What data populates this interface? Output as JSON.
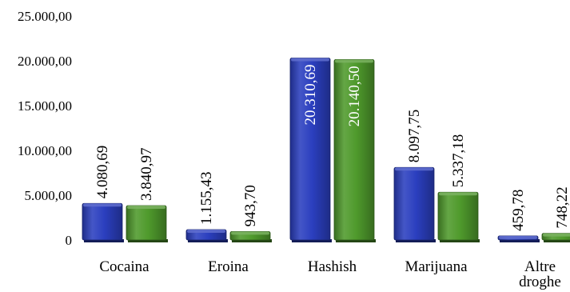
{
  "chart_data": {
    "type": "bar",
    "categories": [
      "Cocaina",
      "Eroina",
      "Hashish",
      "Marijuana",
      "Altre droghe"
    ],
    "series": [
      {
        "color": "#2B3FBF",
        "values": [
          4080.69,
          1155.43,
          20310.69,
          8097.75,
          459.78
        ],
        "labels": [
          "4.080,69",
          "1.155,43",
          "20.310,69",
          "8.097,75",
          "459,78"
        ]
      },
      {
        "color": "#4F9A2C",
        "values": [
          3840.97,
          943.7,
          20140.5,
          5337.18,
          748.22
        ],
        "labels": [
          "3.840,97",
          "943,70",
          "20.140,50",
          "5.337,18",
          "748,22"
        ]
      }
    ],
    "ylim": [
      0,
      25000
    ],
    "yticks": [
      0,
      5000,
      10000,
      15000,
      20000,
      25000
    ],
    "ytick_labels": [
      "0",
      "5.000,00",
      "10.000,00",
      "15.000,00",
      "20.000,00",
      "25.000,00"
    ],
    "title": "",
    "xlabel": "",
    "ylabel": "",
    "grid": false,
    "legend": "none"
  }
}
